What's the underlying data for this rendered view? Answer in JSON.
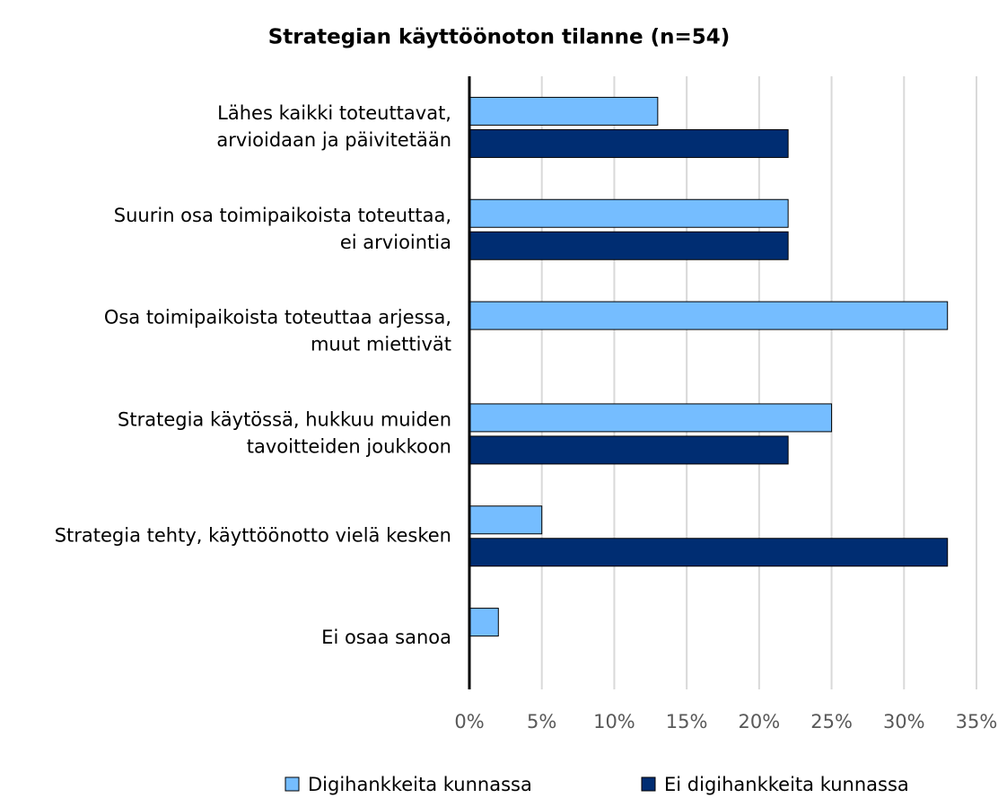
{
  "chart_data": {
    "type": "bar",
    "orientation": "horizontal",
    "title": "Strategian käyttöönoton tilanne (n=54)",
    "categories": [
      [
        "Lähes kaikki toteuttavat,",
        "arvioidaan ja päivitetään"
      ],
      [
        "Suurin osa toimipaikoista toteuttaa,",
        "ei arviointia"
      ],
      [
        "Osa toimipaikoista toteuttaa arjessa,",
        "muut miettivät"
      ],
      [
        "Strategia käytössä, hukkuu muiden",
        "tavoitteiden joukkoon"
      ],
      [
        "Strategia tehty, käyttöönotto vielä kesken"
      ],
      [
        "Ei osaa sanoa"
      ]
    ],
    "series": [
      {
        "name": "Digihankkeita kunnassa",
        "color": "#75bdff",
        "values": [
          13,
          22,
          33,
          25,
          5,
          2
        ]
      },
      {
        "name": "Ei digihankkeita kunnassa",
        "color": "#002d72",
        "values": [
          22,
          22,
          0,
          22,
          33,
          0
        ]
      }
    ],
    "xlim": [
      0,
      35
    ],
    "xticks": [
      {
        "value": 0,
        "label": "0%"
      },
      {
        "value": 5,
        "label": "5%"
      },
      {
        "value": 10,
        "label": "10%"
      },
      {
        "value": 15,
        "label": "15%"
      },
      {
        "value": 20,
        "label": "20%"
      },
      {
        "value": 25,
        "label": "25%"
      },
      {
        "value": 30,
        "label": "30%"
      },
      {
        "value": 35,
        "label": "35%"
      }
    ],
    "grid": true,
    "legend": "bottom"
  }
}
